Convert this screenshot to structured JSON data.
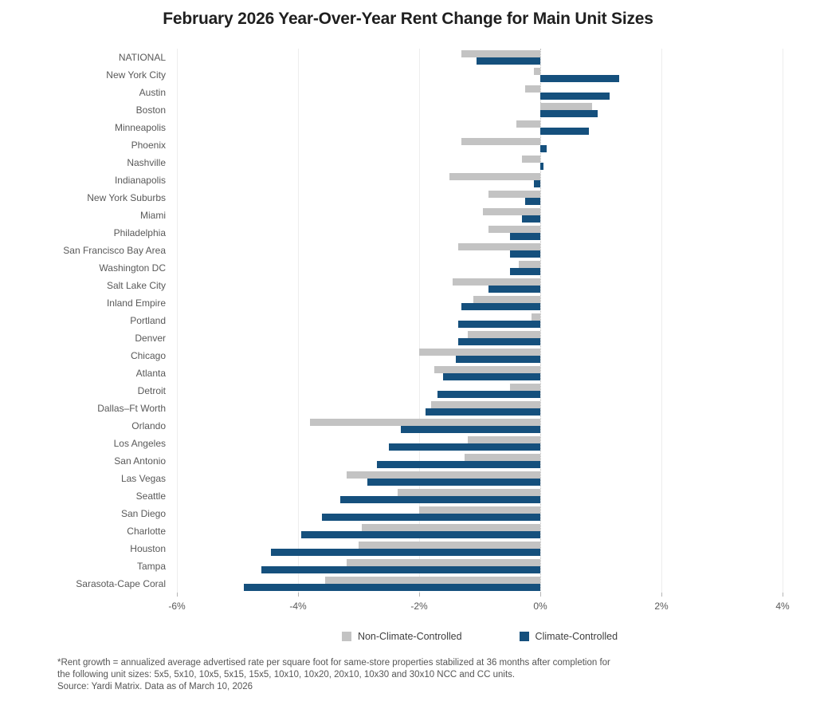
{
  "title": "February 2026 Year-Over-Year Rent Change for Main Unit Sizes",
  "chart_data": {
    "type": "bar",
    "orientation": "horizontal",
    "title": "February 2026 Year-Over-Year Rent Change for Main Unit Sizes",
    "categories": [
      "NATIONAL",
      "New York City",
      "Austin",
      "Boston",
      "Minneapolis",
      "Phoenix",
      "Nashville",
      "Indianapolis",
      "New York Suburbs",
      "Miami",
      "Philadelphia",
      "San Francisco Bay Area",
      "Washington DC",
      "Salt Lake City",
      "Inland Empire",
      "Portland",
      "Denver",
      "Chicago",
      "Atlanta",
      "Detroit",
      "Dallas–Ft Worth",
      "Orlando",
      "Los Angeles",
      "San Antonio",
      "Las Vegas",
      "Seattle",
      "San Diego",
      "Charlotte",
      "Houston",
      "Tampa",
      "Sarasota-Cape Coral"
    ],
    "series": [
      {
        "name": "Non-Climate-Controlled",
        "color": "#c3c3c3",
        "values": [
          -1.3,
          -0.1,
          -0.25,
          0.85,
          -0.4,
          -1.3,
          -0.3,
          -1.5,
          -0.85,
          -0.95,
          -0.85,
          -1.35,
          -0.35,
          -1.45,
          -1.1,
          -0.15,
          -1.2,
          -2.0,
          -1.75,
          -0.5,
          -1.8,
          -3.8,
          -1.2,
          -1.25,
          -3.2,
          -2.35,
          -2.0,
          -2.95,
          -3.0,
          -3.2,
          -3.55
        ]
      },
      {
        "name": "Climate-Controlled",
        "color": "#15507d",
        "values": [
          -1.05,
          1.3,
          1.15,
          0.95,
          0.8,
          0.1,
          0.05,
          -0.1,
          -0.25,
          -0.3,
          -0.5,
          -0.5,
          -0.5,
          -0.85,
          -1.3,
          -1.35,
          -1.35,
          -1.4,
          -1.6,
          -1.7,
          -1.9,
          -2.3,
          -2.5,
          -2.7,
          -2.85,
          -3.3,
          -3.6,
          -3.95,
          -4.45,
          -4.6,
          -4.9
        ]
      }
    ],
    "xlim": [
      -6,
      4
    ],
    "tick_values": [
      -6,
      -4,
      -2,
      0,
      2,
      4
    ],
    "tick_labels": [
      "-6%",
      "-4%",
      "-2%",
      "0%",
      "2%",
      "4%"
    ],
    "value_unit": "%",
    "grid": "vertical-light",
    "legend_position": "bottom"
  },
  "footnote": {
    "line1": "*Rent growth = annualized average advertised rate per square foot for same-store properties stabilized at 36 months after completion for",
    "line2": "the following unit sizes: 5x5, 5x10, 10x5, 5x15, 15x5, 10x10, 10x20, 20x10, 10x30 and 30x10 NCC and CC units.",
    "line3": "Source: Yardi Matrix. Data as of March 10, 2026"
  }
}
